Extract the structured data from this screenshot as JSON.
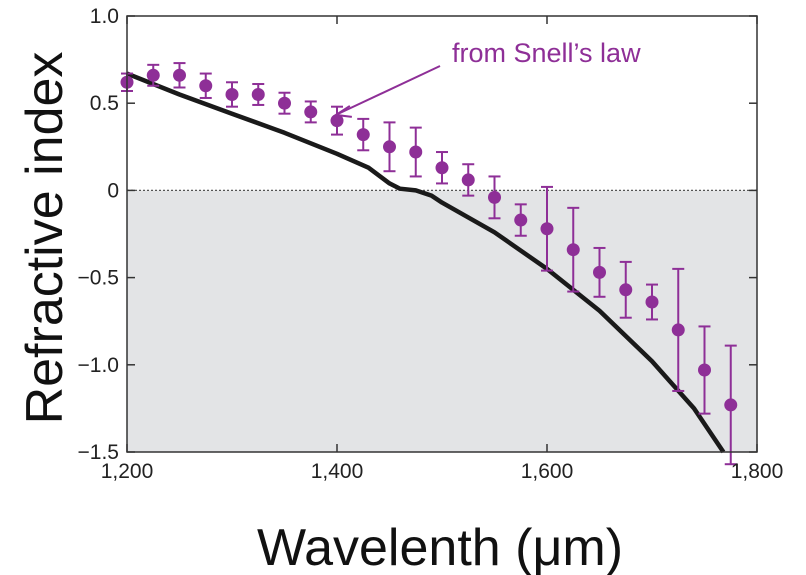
{
  "chart_data": {
    "type": "scatter",
    "xlabel": "Wavelenth (μm)",
    "ylabel": "Refractive index",
    "xlim": [
      1200,
      1800
    ],
    "ylim": [
      -1.5,
      1.0
    ],
    "x_ticks": [
      1200,
      1400,
      1600,
      1800
    ],
    "x_tick_labels": [
      "1,200",
      "1,400",
      "1,600",
      "1,800"
    ],
    "y_ticks": [
      1.0,
      0.5,
      0,
      -0.5,
      -1.0,
      -1.5
    ],
    "y_tick_labels": [
      "1.0",
      "0.5",
      "0",
      "−0.5",
      "−1.0",
      "−1.5"
    ],
    "grid": false,
    "negative_region_shaded": true,
    "zero_reference_line": "dotted",
    "colors": {
      "points": "#8e2f97",
      "curve": "#1a1a1a",
      "shade": "#e3e4e6",
      "annotation": "#8e2f97"
    },
    "annotation": {
      "text": "from Snell’s law",
      "points_to": {
        "x": 1397,
        "y": 0.45
      }
    },
    "series": [
      {
        "type": "scatter",
        "x": [
          1200,
          1225,
          1250,
          1275,
          1300,
          1325,
          1350,
          1375,
          1400,
          1425,
          1450,
          1475,
          1500,
          1525,
          1550,
          1575,
          1600,
          1625,
          1650,
          1675,
          1700,
          1725,
          1750,
          1775
        ],
        "y": [
          0.62,
          0.66,
          0.66,
          0.6,
          0.55,
          0.55,
          0.5,
          0.45,
          0.4,
          0.32,
          0.25,
          0.22,
          0.13,
          0.06,
          -0.04,
          -0.17,
          -0.22,
          -0.34,
          -0.47,
          -0.57,
          -0.64,
          -0.8,
          -1.03,
          -1.23
        ],
        "error": [
          0.05,
          0.06,
          0.07,
          0.07,
          0.07,
          0.06,
          0.06,
          0.06,
          0.08,
          0.09,
          0.14,
          0.14,
          0.09,
          0.09,
          0.12,
          0.09,
          0.24,
          0.24,
          0.14,
          0.16,
          0.1,
          0.35,
          0.25,
          0.34
        ]
      },
      {
        "type": "line",
        "x": [
          1200,
          1250,
          1300,
          1350,
          1400,
          1430,
          1450,
          1460,
          1475,
          1490,
          1500,
          1550,
          1600,
          1650,
          1700,
          1740,
          1768
        ],
        "y": [
          0.67,
          0.55,
          0.44,
          0.33,
          0.21,
          0.13,
          0.04,
          0.01,
          0.0,
          -0.03,
          -0.07,
          -0.24,
          -0.45,
          -0.69,
          -0.98,
          -1.25,
          -1.5
        ]
      }
    ]
  }
}
